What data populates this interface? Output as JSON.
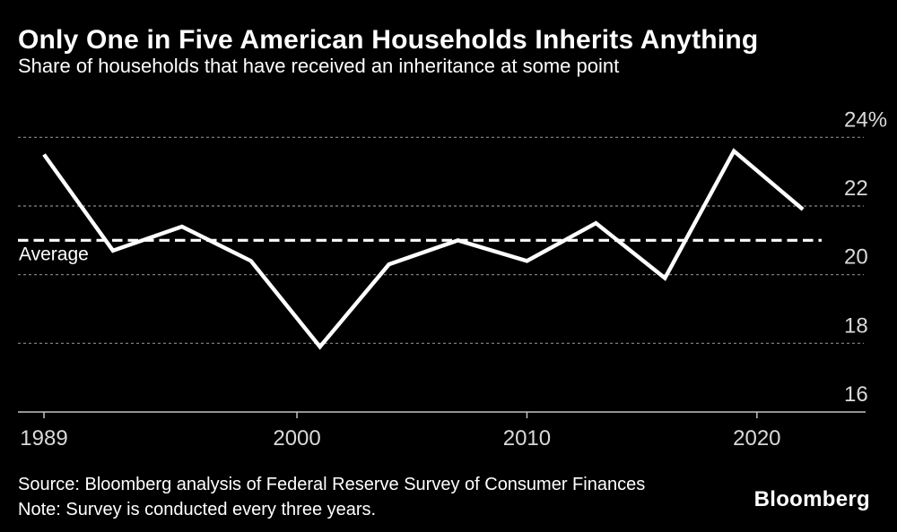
{
  "header": {
    "title": "Only One in Five American Households Inherits Anything",
    "subtitle": "Share of households that have received an inheritance at some point"
  },
  "chart_data": {
    "type": "line",
    "title": "Only One in Five American Households Inherits Anything",
    "subtitle": "Share of households that have received an inheritance at some point",
    "x": [
      1989,
      1992,
      1995,
      1998,
      2001,
      2004,
      2007,
      2010,
      2013,
      2016,
      2019,
      2022
    ],
    "values": [
      23.5,
      20.7,
      21.4,
      20.4,
      17.9,
      20.3,
      21.0,
      20.4,
      21.5,
      19.9,
      23.6,
      21.9
    ],
    "unit": "%",
    "average_value": 21.0,
    "average_label": "Average",
    "ylim": [
      16,
      24
    ],
    "y_ticks": [
      16,
      18,
      20,
      22,
      24
    ],
    "y_tick_labels": [
      "16",
      "18",
      "20",
      "22",
      "24%"
    ],
    "x_ticks": [
      1989,
      2000,
      2010,
      2020
    ],
    "x_tick_labels": [
      "1989",
      "2000",
      "2010",
      "2020"
    ],
    "grid": "horizontal dotted, labels above lines, right side",
    "legend": "none"
  },
  "footer": {
    "source": "Source: Bloomberg analysis of Federal Reserve Survey of Consumer Finances",
    "note": "Note: Survey is conducted every three years.",
    "brand": "Bloomberg"
  },
  "colors": {
    "background": "#000000",
    "text": "#ffffff",
    "axis_labels": "#d9d9d9",
    "gridline": "#8a8a8a",
    "axis_line": "#c4c4c4",
    "line": "#ffffff",
    "average_line": "#ffffff"
  }
}
